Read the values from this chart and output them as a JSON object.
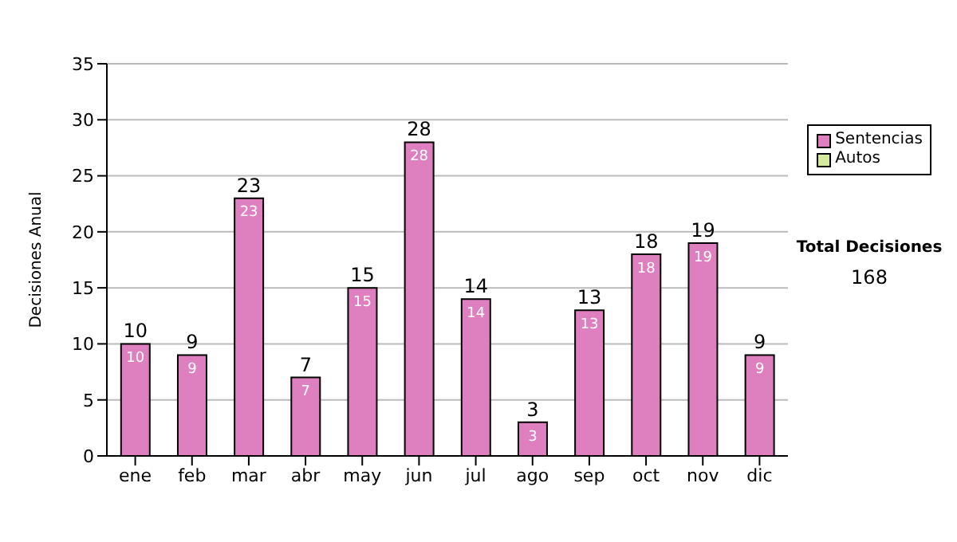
{
  "chart_data": {
    "type": "bar",
    "ylabel": "Decisiones Anual",
    "categories": [
      "ene",
      "feb",
      "mar",
      "abr",
      "may",
      "jun",
      "jul",
      "ago",
      "sep",
      "oct",
      "nov",
      "dic"
    ],
    "series": [
      {
        "name": "Sentencias",
        "color": "#de7fbf",
        "values": [
          10,
          9,
          23,
          7,
          15,
          28,
          14,
          3,
          13,
          18,
          19,
          9
        ],
        "value_labels": [
          "10",
          "9",
          "23",
          "7",
          "15",
          "28",
          "14",
          "3",
          "13",
          "18",
          "19",
          "9"
        ]
      },
      {
        "name": "Autos",
        "color": "#d4ea9f",
        "values": [
          0,
          0,
          0,
          0,
          0,
          0,
          0,
          0,
          0,
          0,
          0,
          0
        ]
      }
    ],
    "stacked": true,
    "totals": [
      "10",
      "9",
      "23",
      "7",
      "15",
      "28",
      "14",
      "3",
      "13",
      "18",
      "19",
      "9"
    ],
    "ylim": [
      0,
      35
    ],
    "yticks": [
      0,
      5,
      10,
      15,
      20,
      25,
      30,
      35
    ],
    "grid": "y",
    "legend": "right",
    "annotations": [
      "Total Decisiones",
      "168"
    ]
  }
}
